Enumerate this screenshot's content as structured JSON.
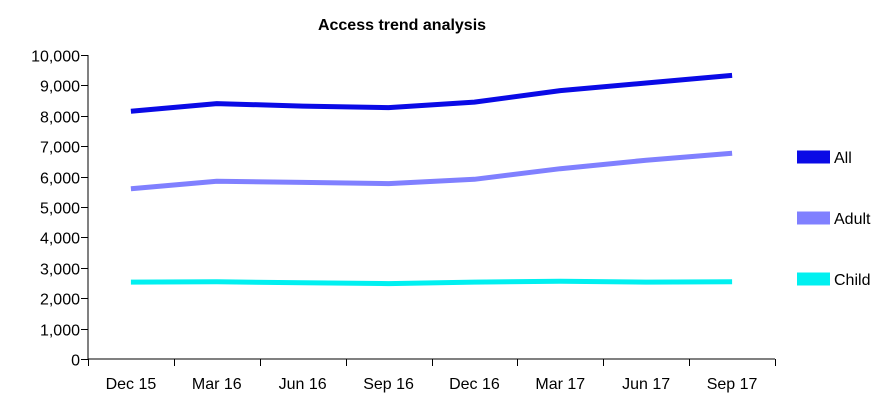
{
  "chart_data": {
    "type": "line",
    "title": "Access trend analysis",
    "xlabel": "",
    "ylabel": "",
    "categories": [
      "Dec 15",
      "Mar 16",
      "Jun 16",
      "Sep 16",
      "Dec 16",
      "Mar 17",
      "Jun 17",
      "Sep 17"
    ],
    "ylim": [
      0,
      10000
    ],
    "y_ticks": [
      "0",
      "1,000",
      "2,000",
      "3,000",
      "4,000",
      "5,000",
      "6,000",
      "7,000",
      "8,000",
      "9,000",
      "10,000"
    ],
    "grid": false,
    "legend_position": "right",
    "series": [
      {
        "name": "All",
        "color": "#0a0ae6",
        "values": [
          8150,
          8400,
          8320,
          8270,
          8450,
          8830,
          9080,
          9330
        ]
      },
      {
        "name": "Adult",
        "color": "#8080ff",
        "values": [
          5600,
          5850,
          5810,
          5770,
          5910,
          6260,
          6540,
          6770
        ]
      },
      {
        "name": "Child",
        "color": "#00f0f0",
        "values": [
          2530,
          2540,
          2510,
          2480,
          2530,
          2560,
          2530,
          2540
        ]
      }
    ]
  }
}
